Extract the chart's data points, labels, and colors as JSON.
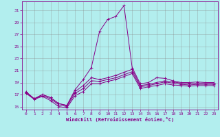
{
  "xlabel": "Windchill (Refroidissement éolien,°C)",
  "bg_color": "#b2eeee",
  "grid_color": "#888888",
  "line_color": "#880088",
  "xlim": [
    -0.5,
    23.5
  ],
  "ylim": [
    14.5,
    32.5
  ],
  "xticks": [
    0,
    1,
    2,
    3,
    4,
    5,
    6,
    7,
    8,
    9,
    10,
    11,
    12,
    13,
    14,
    15,
    16,
    17,
    18,
    19,
    20,
    21,
    22,
    23
  ],
  "yticks": [
    15,
    17,
    19,
    21,
    23,
    25,
    27,
    29,
    31
  ],
  "lines": [
    {
      "x": [
        0,
        1,
        2,
        3,
        4,
        5,
        6,
        7,
        8,
        9,
        10,
        11,
        12,
        13,
        14,
        15,
        16,
        17,
        18,
        19,
        20,
        21,
        22,
        23
      ],
      "y": [
        17.5,
        16.3,
        17.0,
        16.5,
        15.5,
        15.2,
        17.8,
        19.5,
        21.5,
        27.5,
        29.5,
        30.0,
        31.8,
        21.5,
        18.8,
        19.0,
        19.8,
        19.7,
        19.3,
        19.0,
        19.0,
        19.1,
        19.0,
        19.0
      ]
    },
    {
      "x": [
        0,
        1,
        2,
        3,
        4,
        5,
        6,
        7,
        8,
        9,
        10,
        11,
        12,
        13,
        14,
        15,
        16,
        17,
        18,
        19,
        20,
        21,
        22,
        23
      ],
      "y": [
        17.3,
        16.3,
        17.0,
        16.5,
        15.5,
        15.2,
        17.5,
        18.5,
        19.8,
        19.5,
        19.8,
        20.2,
        20.7,
        21.2,
        18.5,
        18.7,
        19.0,
        19.3,
        19.1,
        18.9,
        18.8,
        18.9,
        18.9,
        18.9
      ]
    },
    {
      "x": [
        0,
        1,
        2,
        3,
        4,
        5,
        6,
        7,
        8,
        9,
        10,
        11,
        12,
        13,
        14,
        15,
        16,
        17,
        18,
        19,
        20,
        21,
        22,
        23
      ],
      "y": [
        17.3,
        16.3,
        16.8,
        16.3,
        15.3,
        15.0,
        17.2,
        18.0,
        19.3,
        19.2,
        19.5,
        19.8,
        20.3,
        20.8,
        18.3,
        18.5,
        18.8,
        19.1,
        18.9,
        18.7,
        18.6,
        18.7,
        18.7,
        18.7
      ]
    },
    {
      "x": [
        0,
        1,
        2,
        3,
        4,
        5,
        6,
        7,
        8,
        9,
        10,
        11,
        12,
        13,
        14,
        15,
        16,
        17,
        18,
        19,
        20,
        21,
        22,
        23
      ],
      "y": [
        17.2,
        16.2,
        16.7,
        16.0,
        15.0,
        14.8,
        16.8,
        17.5,
        18.8,
        18.8,
        19.2,
        19.5,
        20.0,
        20.5,
        18.0,
        18.3,
        18.5,
        18.8,
        18.6,
        18.5,
        18.4,
        18.5,
        18.5,
        18.5
      ]
    }
  ]
}
